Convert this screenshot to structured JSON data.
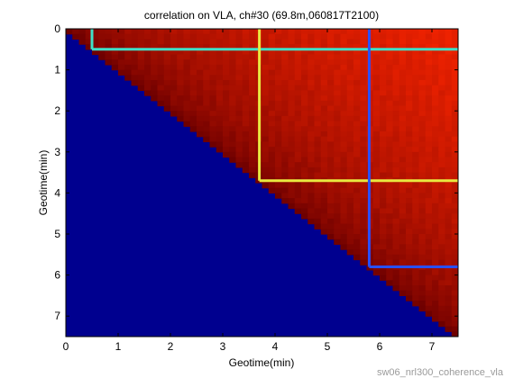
{
  "chart_data": {
    "type": "heatmap",
    "title": "correlation on VLA, ch#30 (69.8m,060817T2100)",
    "xlabel": "Geotime(min)",
    "ylabel": "Geotime(min)",
    "xlim": [
      0,
      7.5
    ],
    "ylim": [
      7.5,
      0
    ],
    "xticks": [
      "0",
      "1",
      "2",
      "3",
      "4",
      "5",
      "6",
      "7"
    ],
    "yticks": [
      "0",
      "1",
      "2",
      "3",
      "4",
      "5",
      "6",
      "7"
    ],
    "lower_triangle_color": "#00008f",
    "diagonal_color": "#6e0000",
    "upper_corner_color": "#ee2200",
    "grid": false,
    "marker_lines": [
      {
        "name": "",
        "color": "#40e0c8",
        "t": 0.5
      },
      {
        "name": "",
        "color": "#e8e840",
        "t": 3.7
      },
      {
        "name": "",
        "color": "#2850ff",
        "t": 5.8
      }
    ]
  },
  "footer": {
    "filename": "sw06_nrl300_coherence_vla"
  }
}
